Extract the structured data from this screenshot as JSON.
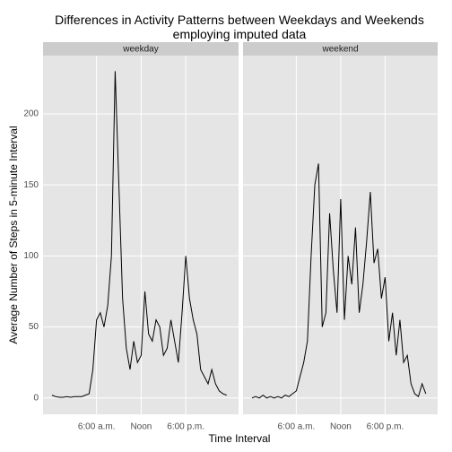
{
  "chart_data": {
    "type": "line",
    "title": "Differences in Activity Patterns between Weekdays and Weekends\nemploying imputed data",
    "xlabel": "Time Interval",
    "ylabel": "Average Number of Steps in 5-minute Interval",
    "x": [
      0,
      0.5,
      1,
      1.5,
      2,
      2.5,
      3,
      3.5,
      4,
      4.5,
      5,
      5.5,
      6,
      6.5,
      7,
      7.5,
      8,
      8.5,
      9,
      9.5,
      10,
      10.5,
      11,
      11.5,
      12,
      12.5,
      13,
      13.5,
      14,
      14.5,
      15,
      15.5,
      16,
      16.5,
      17,
      17.5,
      18,
      18.5,
      19,
      19.5,
      20,
      20.5,
      21,
      21.5,
      22,
      22.5,
      23,
      23.5
    ],
    "series": [
      {
        "name": "weekday",
        "color": "#000000",
        "values": [
          2,
          1,
          0.5,
          0.5,
          1,
          0.5,
          1,
          1,
          1,
          2,
          3,
          20,
          55,
          60,
          50,
          65,
          100,
          230,
          150,
          70,
          35,
          20,
          40,
          25,
          30,
          75,
          45,
          40,
          55,
          50,
          30,
          35,
          55,
          40,
          25,
          60,
          100,
          70,
          55,
          45,
          20,
          15,
          10,
          20,
          10,
          5,
          3,
          2
        ]
      },
      {
        "name": "weekend",
        "color": "#000000",
        "values": [
          0,
          1,
          0,
          2,
          0,
          1,
          0,
          1,
          0,
          2,
          1,
          3,
          5,
          15,
          25,
          40,
          100,
          150,
          165,
          50,
          60,
          130,
          90,
          60,
          140,
          55,
          100,
          80,
          120,
          60,
          80,
          110,
          145,
          95,
          105,
          70,
          85,
          40,
          60,
          30,
          55,
          25,
          30,
          10,
          3,
          1,
          10,
          3
        ]
      }
    ],
    "xlim": [
      -1.2,
      25.1
    ],
    "xticks": [
      {
        "value": 6,
        "label": "6:00 a.m."
      },
      {
        "value": 12,
        "label": "Noon"
      },
      {
        "value": 18,
        "label": "6:00 p.m."
      }
    ],
    "ylim": [
      -11.5,
      241
    ],
    "yticks": [
      0,
      50,
      100,
      150,
      200
    ],
    "grid": true
  }
}
